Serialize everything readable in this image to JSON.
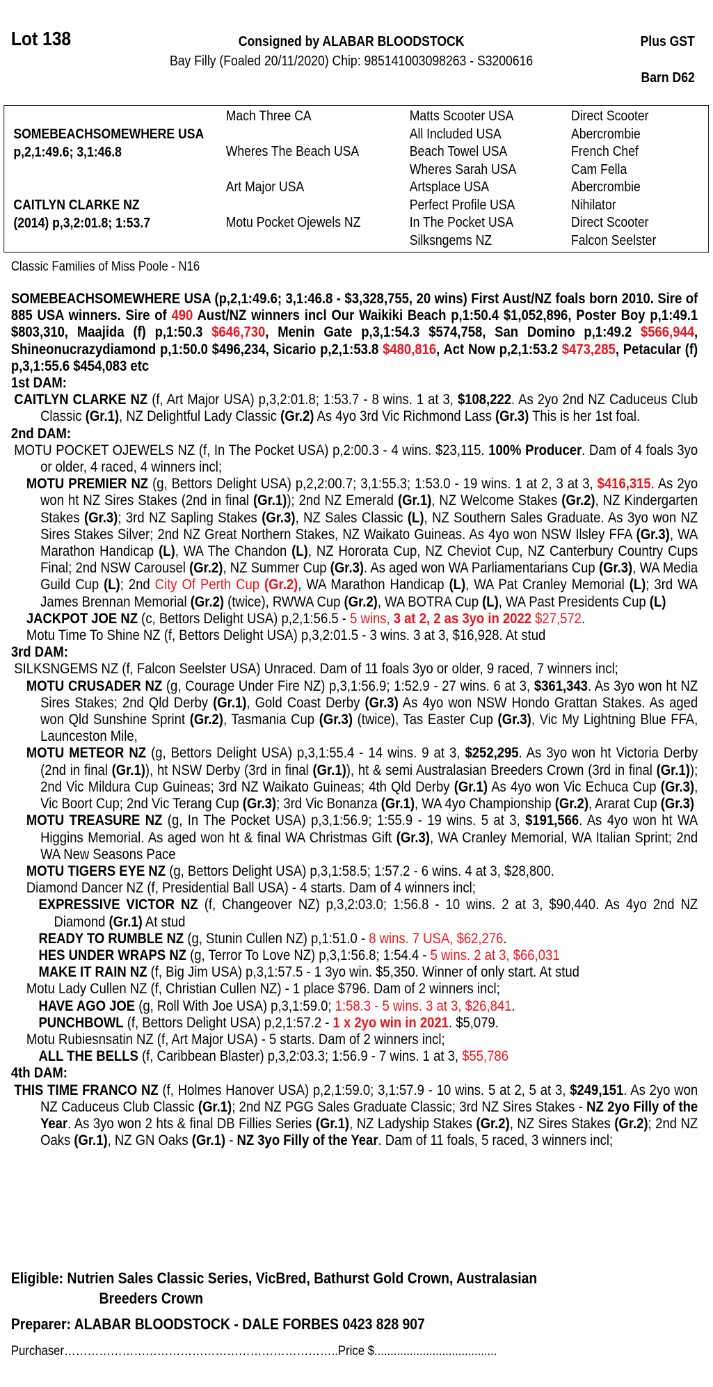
{
  "header": {
    "lot": "Lot 138",
    "consigned": "Consigned by ALABAR BLOODSTOCK",
    "description": "Bay Filly (Foaled 20/11/2020) Chip: 985141003098263 - S3200616",
    "gst": "Plus  GST",
    "barn": "Barn D62"
  },
  "pedigree": {
    "sire": "SOMEBEACHSOMEWHERE USA",
    "sire_record": "p,2,1:49.6; 3,1:46.8",
    "dam": "CAITLYN CLARKE NZ",
    "dam_record": "(2014) p,3,2:01.8; 1:53.7",
    "gen2": [
      "Mach Three CA",
      "Wheres The Beach USA",
      "Art Major USA",
      "Motu Pocket Ojewels NZ"
    ],
    "gen3": [
      "Matts Scooter USA",
      "All Included USA",
      "Beach Towel USA",
      "Wheres Sarah USA",
      "Artsplace USA",
      "Perfect Profile USA",
      "In The Pocket USA",
      "Silksngems NZ"
    ],
    "gen4": [
      "Direct Scooter",
      "Abercrombie",
      "French Chef",
      "Cam Fella",
      "Abercrombie",
      "Nihilator",
      "Direct Scooter",
      "Falcon Seelster"
    ]
  },
  "family": "Classic Families of Miss Poole - N16",
  "colors": {
    "highlight": "#e8141c",
    "text": "#000000"
  },
  "body": [
    {
      "type": "para",
      "level": "s",
      "segs": [
        [
          "SOMEBEACHSOMEWHERE USA (p,2,1:49.6;  3,1:46.8 - $3,328,755, 20 wins) First Aust/NZ foals born 2010. Sire of 885 USA winners. Sire of ",
          "b"
        ],
        [
          "490",
          "br"
        ],
        [
          " Aust/NZ winners incl Our Waikiki Beach p,1:50.4 $1,052,896, Poster Boy p,1:49.1 $803,310, Maajida (f) p,1:50.3 ",
          "b"
        ],
        [
          "$646,730",
          "br"
        ],
        [
          ", Menin Gate p,3,1:54.3 $574,758, San Domino p,1:49.2 ",
          "b"
        ],
        [
          "$566,944",
          "br"
        ],
        [
          ", Shineonucrazydiamond p,1:50.0 $496,234, Sicario p,2,1:53.8 ",
          "b"
        ],
        [
          "$480,816",
          "br"
        ],
        [
          ", Act Now p,2,1:53.2 ",
          "b"
        ],
        [
          "$473,285",
          "br"
        ],
        [
          ", Petacular (f) p,3,1:55.6 $454,083 etc",
          "b"
        ]
      ]
    },
    {
      "type": "heading",
      "text": "1st DAM:"
    },
    {
      "type": "para",
      "level": "0",
      "segs": [
        [
          "CAITLYN CLARKE NZ",
          "b"
        ],
        [
          " (f, Art Major USA) p,3,2:01.8; 1:53.7 - 8 wins. 1 at 3, ",
          ""
        ],
        [
          "$108,222",
          "b"
        ],
        [
          ". As 2yo 2nd NZ Caduceus Club Classic ",
          ""
        ],
        [
          "(Gr.1)",
          "b"
        ],
        [
          ", NZ Delightful Lady Classic ",
          ""
        ],
        [
          "(Gr.2)",
          "b"
        ],
        [
          " As 4yo 3rd Vic Richmond Lass ",
          ""
        ],
        [
          "(Gr.3)",
          "b"
        ],
        [
          " This is her 1st foal.",
          ""
        ]
      ]
    },
    {
      "type": "heading",
      "text": "2nd DAM:"
    },
    {
      "type": "para",
      "level": "0",
      "segs": [
        [
          "MOTU POCKET OJEWELS NZ (f, In The Pocket USA) p,2:00.3 - 4 wins. $23,115. ",
          ""
        ],
        [
          "100% Producer",
          "b"
        ],
        [
          ". Dam of 4 foals 3yo or older, 4 raced, 4 winners incl;",
          ""
        ]
      ]
    },
    {
      "type": "para",
      "level": "1",
      "segs": [
        [
          "MOTU PREMIER NZ",
          "b"
        ],
        [
          " (g, Bettors Delight USA) p,2,2:00.7; 3,1:55.3; 1:53.0 - 19 wins. 1 at 2, 3 at 3, ",
          ""
        ],
        [
          "$416,315",
          "br"
        ],
        [
          ". As 2yo won ht NZ Sires Stakes (2nd in final ",
          ""
        ],
        [
          "(Gr.1)",
          "b"
        ],
        [
          "); 2nd NZ Emerald ",
          ""
        ],
        [
          "(Gr.1)",
          "b"
        ],
        [
          ", NZ Welcome Stakes ",
          ""
        ],
        [
          "(Gr.2)",
          "b"
        ],
        [
          ", NZ Kindergarten Stakes ",
          ""
        ],
        [
          "(Gr.3)",
          "b"
        ],
        [
          "; 3rd NZ Sapling Stakes ",
          ""
        ],
        [
          "(Gr.3)",
          "b"
        ],
        [
          ", NZ Sales Classic ",
          ""
        ],
        [
          "(L)",
          "b"
        ],
        [
          ", NZ Southern Sales Graduate. As 3yo won NZ Sires Stakes Silver; 2nd NZ Great Northern Stakes, NZ Waikato Guineas. As 4yo won NSW Ilsley FFA ",
          ""
        ],
        [
          "(Gr.3)",
          "b"
        ],
        [
          ", WA Marathon Handicap ",
          ""
        ],
        [
          "(L)",
          "b"
        ],
        [
          ", WA The Chandon ",
          ""
        ],
        [
          "(L)",
          "b"
        ],
        [
          ", NZ Hororata Cup, NZ Cheviot Cup, NZ Canterbury Country Cups Final; 2nd NSW Carousel ",
          ""
        ],
        [
          "(Gr.2)",
          "b"
        ],
        [
          ", NZ Summer Cup ",
          ""
        ],
        [
          "(Gr.3)",
          "b"
        ],
        [
          ". As aged won WA Parliamentarians Cup ",
          ""
        ],
        [
          "(Gr.3)",
          "b"
        ],
        [
          ", WA Media Guild Cup ",
          ""
        ],
        [
          "(L)",
          "b"
        ],
        [
          "; 2nd ",
          ""
        ],
        [
          "City Of Perth Cup ",
          "r"
        ],
        [
          "(Gr.2)",
          "br"
        ],
        [
          ", WA Marathon Handicap ",
          ""
        ],
        [
          "(L)",
          "b"
        ],
        [
          ", WA Pat Cranley Memorial ",
          ""
        ],
        [
          "(L)",
          "b"
        ],
        [
          "; 3rd WA James Brennan Memorial ",
          ""
        ],
        [
          "(Gr.2)",
          "b"
        ],
        [
          " (twice), RWWA Cup ",
          ""
        ],
        [
          "(Gr.2)",
          "b"
        ],
        [
          ", WA BOTRA Cup ",
          ""
        ],
        [
          "(L)",
          "b"
        ],
        [
          ", WA Past Presidents Cup ",
          ""
        ],
        [
          "(L)",
          "b"
        ]
      ]
    },
    {
      "type": "para",
      "level": "1",
      "segs": [
        [
          "JACKPOT JOE NZ",
          "b"
        ],
        [
          " (c, Bettors Delight USA) p,2,1:56.5 - ",
          ""
        ],
        [
          "5 wins, ",
          "r"
        ],
        [
          "3 at 2, 2 as 3yo in 2022",
          "br"
        ],
        [
          " $27,572",
          "r"
        ],
        [
          ".",
          ""
        ]
      ]
    },
    {
      "type": "para",
      "level": "1",
      "segs": [
        [
          "Motu Time To Shine NZ (f, Bettors Delight USA) p,3,2:01.5 - 3 wins. 3 at 3, $16,928. At stud",
          ""
        ]
      ]
    },
    {
      "type": "heading",
      "text": "3rd DAM:"
    },
    {
      "type": "para",
      "level": "0",
      "segs": [
        [
          "SILKSNGEMS NZ (f, Falcon Seelster USA) Unraced. Dam of 11 foals 3yo or older, 9 raced, 7 winners incl;",
          ""
        ]
      ]
    },
    {
      "type": "para",
      "level": "1",
      "segs": [
        [
          "MOTU CRUSADER NZ",
          "b"
        ],
        [
          " (g, Courage Under Fire NZ) p,3,1:56.9; 1:52.9 - 27 wins. 6 at 3, ",
          ""
        ],
        [
          "$361,343",
          "b"
        ],
        [
          ". As 3yo won ht NZ Sires Stakes; 2nd Qld Derby ",
          ""
        ],
        [
          "(Gr.1)",
          "b"
        ],
        [
          ", Gold Coast Derby ",
          ""
        ],
        [
          "(Gr.3)",
          "b"
        ],
        [
          " As 4yo won NSW Hondo Grattan Stakes. As aged won Qld Sunshine Sprint ",
          ""
        ],
        [
          "(Gr.2)",
          "b"
        ],
        [
          ", Tasmania Cup ",
          ""
        ],
        [
          "(Gr.3)",
          "b"
        ],
        [
          " (twice), Tas Easter Cup ",
          ""
        ],
        [
          "(Gr.3)",
          "b"
        ],
        [
          ", Vic My Lightning Blue FFA, Launceston Mile,",
          ""
        ]
      ]
    },
    {
      "type": "para",
      "level": "1",
      "segs": [
        [
          "MOTU METEOR NZ",
          "b"
        ],
        [
          " (g, Bettors Delight USA) p,3,1:55.4 - 14 wins. 9 at 3, ",
          ""
        ],
        [
          "$252,295",
          "b"
        ],
        [
          ". As 3yo won ht Victoria Derby (2nd in final ",
          ""
        ],
        [
          "(Gr.1)",
          "b"
        ],
        [
          "), ht NSW Derby (3rd in final ",
          ""
        ],
        [
          "(Gr.1)",
          "b"
        ],
        [
          "), ht & semi Australasian Breeders Crown (3rd in final ",
          ""
        ],
        [
          "(Gr.1)",
          "b"
        ],
        [
          "); 2nd Vic Mildura Cup Guineas; 3rd NZ Waikato Guineas; 4th Qld Derby ",
          ""
        ],
        [
          "(Gr.1)",
          "b"
        ],
        [
          " As 4yo won Vic Echuca Cup ",
          ""
        ],
        [
          "(Gr.3)",
          "b"
        ],
        [
          ", Vic Boort Cup; 2nd Vic Terang Cup ",
          ""
        ],
        [
          "(Gr.3)",
          "b"
        ],
        [
          "; 3rd Vic Bonanza ",
          ""
        ],
        [
          "(Gr.1)",
          "b"
        ],
        [
          ", WA 4yo Championship ",
          ""
        ],
        [
          "(Gr.2)",
          "b"
        ],
        [
          ", Ararat Cup ",
          ""
        ],
        [
          "(Gr.3)",
          "b"
        ]
      ]
    },
    {
      "type": "para",
      "level": "1",
      "segs": [
        [
          "MOTU TREASURE NZ",
          "b"
        ],
        [
          " (g, In The Pocket USA) p,3,1:56.9; 1:55.9 - 19 wins. 5 at 3, ",
          ""
        ],
        [
          "$191,566",
          "b"
        ],
        [
          ". As 4yo won ht WA Higgins Memorial. As aged won ht & final WA Christmas Gift ",
          ""
        ],
        [
          "(Gr.3)",
          "b"
        ],
        [
          ", WA Cranley Memorial, WA Italian Sprint; 2nd WA New Seasons Pace",
          ""
        ]
      ]
    },
    {
      "type": "para",
      "level": "1",
      "segs": [
        [
          "MOTU TIGERS EYE NZ",
          "b"
        ],
        [
          " (g, Bettors Delight USA) p,3,1:58.5; 1:57.2 - 6 wins. 4 at 3, $28,800.",
          ""
        ]
      ]
    },
    {
      "type": "para",
      "level": "1",
      "segs": [
        [
          "Diamond Dancer NZ (f, Presidential Ball USA) - 4 starts. Dam of 4 winners incl;",
          ""
        ]
      ]
    },
    {
      "type": "para",
      "level": "2",
      "segs": [
        [
          "EXPRESSIVE VICTOR NZ",
          "b"
        ],
        [
          " (f, Changeover NZ) p,3,2:03.0; 1:56.8 - 10 wins. 2 at 3, $90,440. As 4yo 2nd NZ Diamond ",
          ""
        ],
        [
          "(Gr.1)",
          "b"
        ],
        [
          " At stud",
          ""
        ]
      ]
    },
    {
      "type": "para",
      "level": "2",
      "segs": [
        [
          "READY TO RUMBLE NZ",
          "b"
        ],
        [
          " (g, Stunin Cullen NZ) p,1:51.0 - ",
          ""
        ],
        [
          "8 wins. 7 USA, $62,276",
          "r"
        ],
        [
          ".",
          ""
        ]
      ]
    },
    {
      "type": "para",
      "level": "2",
      "segs": [
        [
          "HES UNDER WRAPS NZ",
          "b"
        ],
        [
          " (g, Terror To Love NZ) p,3,1:56.8; 1:54.4 - ",
          ""
        ],
        [
          "5 wins. 2 at 3, $66,031",
          "r"
        ]
      ]
    },
    {
      "type": "para",
      "level": "2",
      "segs": [
        [
          "MAKE IT RAIN NZ",
          "b"
        ],
        [
          " (f, Big Jim USA) p,3,1:57.5 - 1 3yo win. $5,350. Winner of only start. At stud",
          ""
        ]
      ]
    },
    {
      "type": "para",
      "level": "1",
      "segs": [
        [
          "Motu Lady Cullen NZ (f, Christian Cullen NZ) - 1 place $796. Dam of 2 winners incl;",
          ""
        ]
      ]
    },
    {
      "type": "para",
      "level": "2",
      "segs": [
        [
          "HAVE AGO JOE",
          "b"
        ],
        [
          " (g, Roll With Joe USA) p,3,1:59.0; ",
          ""
        ],
        [
          "1:58.3 - 5 wins. 3 at 3, $26,841",
          "r"
        ],
        [
          ".",
          ""
        ]
      ]
    },
    {
      "type": "para",
      "level": "2",
      "segs": [
        [
          "PUNCHBOWL",
          "b"
        ],
        [
          " (f, Bettors Delight USA) p,2,1:57.2 - ",
          ""
        ],
        [
          "1 x 2yo win in 2021",
          "br"
        ],
        [
          ". $5,079.",
          ""
        ]
      ]
    },
    {
      "type": "para",
      "level": "1",
      "segs": [
        [
          "Motu Rubiesnsatin NZ (f, Art Major USA) - 5 starts. Dam of 2 winners incl;",
          ""
        ]
      ]
    },
    {
      "type": "para",
      "level": "2",
      "segs": [
        [
          "ALL THE BELLS",
          "b"
        ],
        [
          " (f, Caribbean Blaster) p,3,2:03.3; 1:56.9 - 7 wins. 1 at 3, ",
          ""
        ],
        [
          "$55,786",
          "r"
        ]
      ]
    },
    {
      "type": "heading",
      "text": "4th DAM:"
    },
    {
      "type": "para",
      "level": "0",
      "segs": [
        [
          "THIS TIME FRANCO NZ",
          "b"
        ],
        [
          " (f, Holmes Hanover USA) p,2,1:59.0; 3,1:57.9 - 10 wins. 5 at 2, 5 at 3, ",
          ""
        ],
        [
          "$249,151",
          "b"
        ],
        [
          ". As 2yo won NZ Caduceus Club Classic ",
          ""
        ],
        [
          "(Gr.1)",
          "b"
        ],
        [
          "; 2nd NZ PGG Sales Graduate Classic; 3rd NZ Sires Stakes - ",
          ""
        ],
        [
          "NZ 2yo Filly of the Year",
          "b"
        ],
        [
          ". As 3yo won 2 hts & final DB Fillies Series ",
          ""
        ],
        [
          "(Gr.1)",
          "b"
        ],
        [
          ", NZ Ladyship Stakes ",
          ""
        ],
        [
          "(Gr.2)",
          "b"
        ],
        [
          ", NZ Sires Stakes ",
          ""
        ],
        [
          "(Gr.2)",
          "b"
        ],
        [
          "; 2nd NZ Oaks ",
          ""
        ],
        [
          "(Gr.1)",
          "b"
        ],
        [
          ", NZ GN Oaks ",
          ""
        ],
        [
          "(Gr.1)",
          "b"
        ],
        [
          " - ",
          ""
        ],
        [
          "NZ 3yo Filly of the Year",
          "b"
        ],
        [
          ". Dam of 11 foals, 5 raced, 3 winners incl;",
          ""
        ]
      ]
    }
  ],
  "footer": {
    "eligible_line1": "Eligible: Nutrien Sales Classic Series, VicBred, Bathurst Gold Crown, Australasian",
    "eligible_line2": "Breeders Crown",
    "preparer": "Preparer: ALABAR BLOODSTOCK - DALE FORBES 0423 828 907",
    "purchaser": "Purchaser……………………………………………………………..Price $......................................"
  }
}
